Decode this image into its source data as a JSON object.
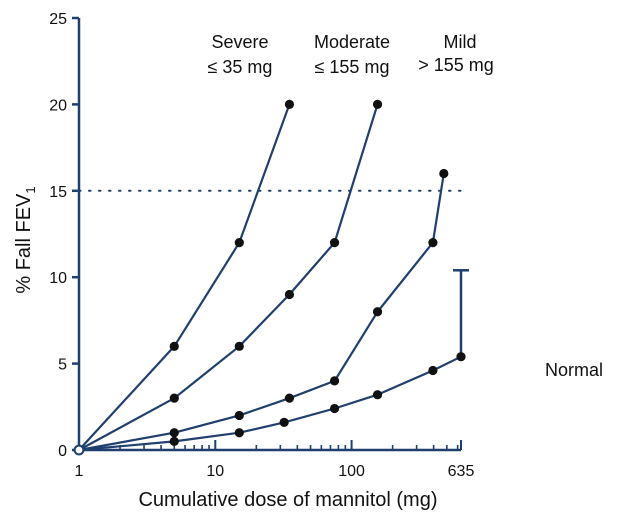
{
  "chart_data": {
    "type": "line",
    "xlabel": "Cumulative dose of mannitol (mg)",
    "ylabel": "% Fall FEV",
    "ylabel_subscript": "1",
    "x_scale": "log",
    "xlim": [
      1,
      635
    ],
    "ylim": [
      0,
      25
    ],
    "x_ticks": [
      {
        "value": 1,
        "label": "1"
      },
      {
        "value": 10,
        "label": "10"
      },
      {
        "value": 100,
        "label": "100"
      },
      {
        "value": 635,
        "label": "635"
      }
    ],
    "y_ticks": [
      {
        "value": 0,
        "label": "0"
      },
      {
        "value": 5,
        "label": "5"
      },
      {
        "value": 10,
        "label": "10"
      },
      {
        "value": 15,
        "label": "15"
      },
      {
        "value": 20,
        "label": "20"
      },
      {
        "value": 25,
        "label": "25"
      }
    ],
    "reference_line": {
      "y": 15,
      "style": "dotted"
    },
    "series": [
      {
        "key": "severe",
        "points": [
          [
            1,
            0
          ],
          [
            5,
            6
          ],
          [
            15,
            12
          ],
          [
            35,
            20
          ]
        ]
      },
      {
        "key": "moderate",
        "points": [
          [
            1,
            0
          ],
          [
            5,
            3
          ],
          [
            15,
            6
          ],
          [
            35,
            9
          ],
          [
            75,
            12
          ],
          [
            155,
            20
          ]
        ]
      },
      {
        "key": "mild",
        "points": [
          [
            1,
            0
          ],
          [
            5,
            1
          ],
          [
            15,
            2
          ],
          [
            35,
            3
          ],
          [
            75,
            4
          ],
          [
            155,
            8
          ],
          [
            395,
            12
          ],
          [
            475,
            16
          ]
        ]
      },
      {
        "key": "normal",
        "points": [
          [
            1,
            0
          ],
          [
            5,
            0.5
          ],
          [
            15,
            1
          ],
          [
            32,
            1.6
          ],
          [
            75,
            2.4
          ],
          [
            155,
            3.2
          ],
          [
            395,
            4.6
          ],
          [
            635,
            5.4
          ]
        ]
      }
    ],
    "error_bar": {
      "x": 635,
      "y": 5.4,
      "upper": 10.4
    },
    "annotations": [
      {
        "key": "severe",
        "lines": [
          "Severe",
          "≤ 35 mg"
        ]
      },
      {
        "key": "moderate",
        "lines": [
          "Moderate",
          "≤ 155 mg"
        ]
      },
      {
        "key": "mild",
        "lines": [
          "Mild",
          "> 155 mg"
        ]
      },
      {
        "key": "normal",
        "lines": [
          "Normal"
        ]
      }
    ],
    "line_color": "#1f3f6e",
    "marker_color": "#111111"
  }
}
